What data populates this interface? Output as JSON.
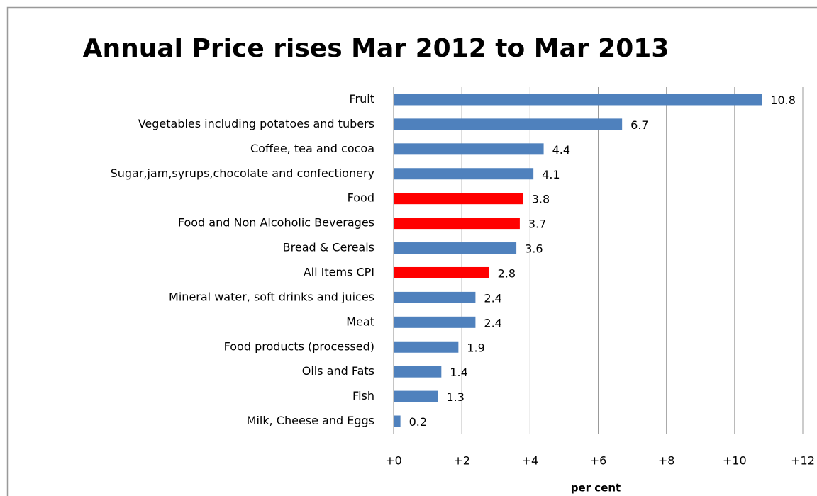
{
  "chart_data": {
    "type": "bar",
    "orientation": "horizontal",
    "title": "Annual Price rises Mar 2012 to Mar 2013",
    "x_label": "per cent",
    "categories": [
      "Fruit",
      "Vegetables including potatoes and tubers",
      "Coffee, tea and cocoa",
      "Sugar,jam,syrups,chocolate and confectionery",
      "Food",
      "Food and Non Alcoholic Beverages",
      "Bread & Cereals",
      "All Items CPI",
      "Mineral water, soft drinks and juices",
      "Meat",
      "Food products (processed)",
      "Oils and Fats",
      "Fish",
      "Milk, Cheese and Eggs"
    ],
    "values": [
      10.8,
      6.7,
      4.4,
      4.1,
      3.8,
      3.7,
      3.6,
      2.8,
      2.4,
      2.4,
      1.9,
      1.4,
      1.3,
      0.2
    ],
    "colors": [
      "#4f81bd",
      "#4f81bd",
      "#4f81bd",
      "#4f81bd",
      "#ff0000",
      "#ff0000",
      "#4f81bd",
      "#ff0000",
      "#4f81bd",
      "#4f81bd",
      "#4f81bd",
      "#4f81bd",
      "#4f81bd",
      "#4f81bd"
    ],
    "xlim": [
      0,
      12
    ],
    "xticks": [
      {
        "value": 0,
        "label": "+0"
      },
      {
        "value": 2,
        "label": "+2"
      },
      {
        "value": 4,
        "label": "+4"
      },
      {
        "value": 6,
        "label": "+6"
      },
      {
        "value": 8,
        "label": "+8"
      },
      {
        "value": 10,
        "label": "+10"
      },
      {
        "value": 12,
        "label": "+12"
      }
    ],
    "grid": true
  }
}
